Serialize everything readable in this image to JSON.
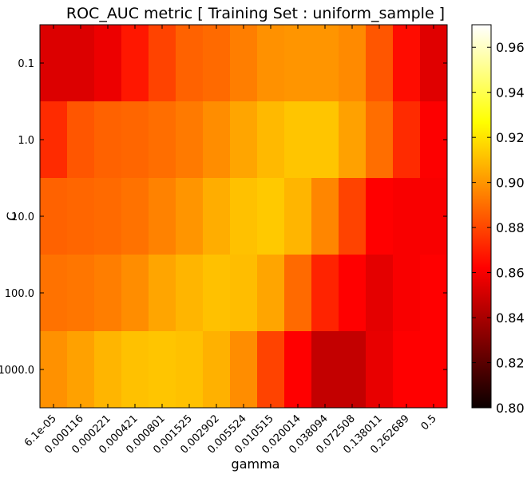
{
  "chart_data": {
    "type": "heatmap",
    "title": "ROC_AUC metric  [ Training Set : uniform_sample ]",
    "xlabel": "gamma",
    "ylabel": "C",
    "x_ticks": [
      "6.1e-05",
      "0.000116",
      "0.000221",
      "0.000421",
      "0.000801",
      "0.001525",
      "0.002902",
      "0.005524",
      "0.010515",
      "0.020014",
      "0.038094",
      "0.072508",
      "0.138011",
      "0.262689",
      "0.5"
    ],
    "y_ticks": [
      "0.1",
      "1.0",
      "10.0",
      "100.0",
      "1000.0"
    ],
    "colormap": "hot",
    "color_range": [
      0.8,
      0.97
    ],
    "colorbar_ticks": [
      "0.80",
      "0.82",
      "0.84",
      "0.86",
      "0.88",
      "0.90",
      "0.92",
      "0.94",
      "0.96"
    ],
    "values": [
      [
        0.851,
        0.851,
        0.855,
        0.868,
        0.879,
        0.887,
        0.889,
        0.894,
        0.899,
        0.9,
        0.9,
        0.897,
        0.884,
        0.865,
        0.852
      ],
      [
        0.873,
        0.884,
        0.887,
        0.888,
        0.89,
        0.893,
        0.898,
        0.904,
        0.909,
        0.912,
        0.912,
        0.903,
        0.89,
        0.873,
        0.859
      ],
      [
        0.887,
        0.888,
        0.889,
        0.891,
        0.895,
        0.9,
        0.906,
        0.911,
        0.913,
        0.908,
        0.896,
        0.879,
        0.862,
        0.858,
        0.858
      ],
      [
        0.891,
        0.892,
        0.894,
        0.898,
        0.904,
        0.908,
        0.911,
        0.91,
        0.904,
        0.889,
        0.871,
        0.86,
        0.853,
        0.858,
        0.86
      ],
      [
        0.899,
        0.903,
        0.908,
        0.911,
        0.912,
        0.911,
        0.907,
        0.898,
        0.879,
        0.86,
        0.845,
        0.845,
        0.854,
        0.86,
        0.862
      ]
    ]
  }
}
